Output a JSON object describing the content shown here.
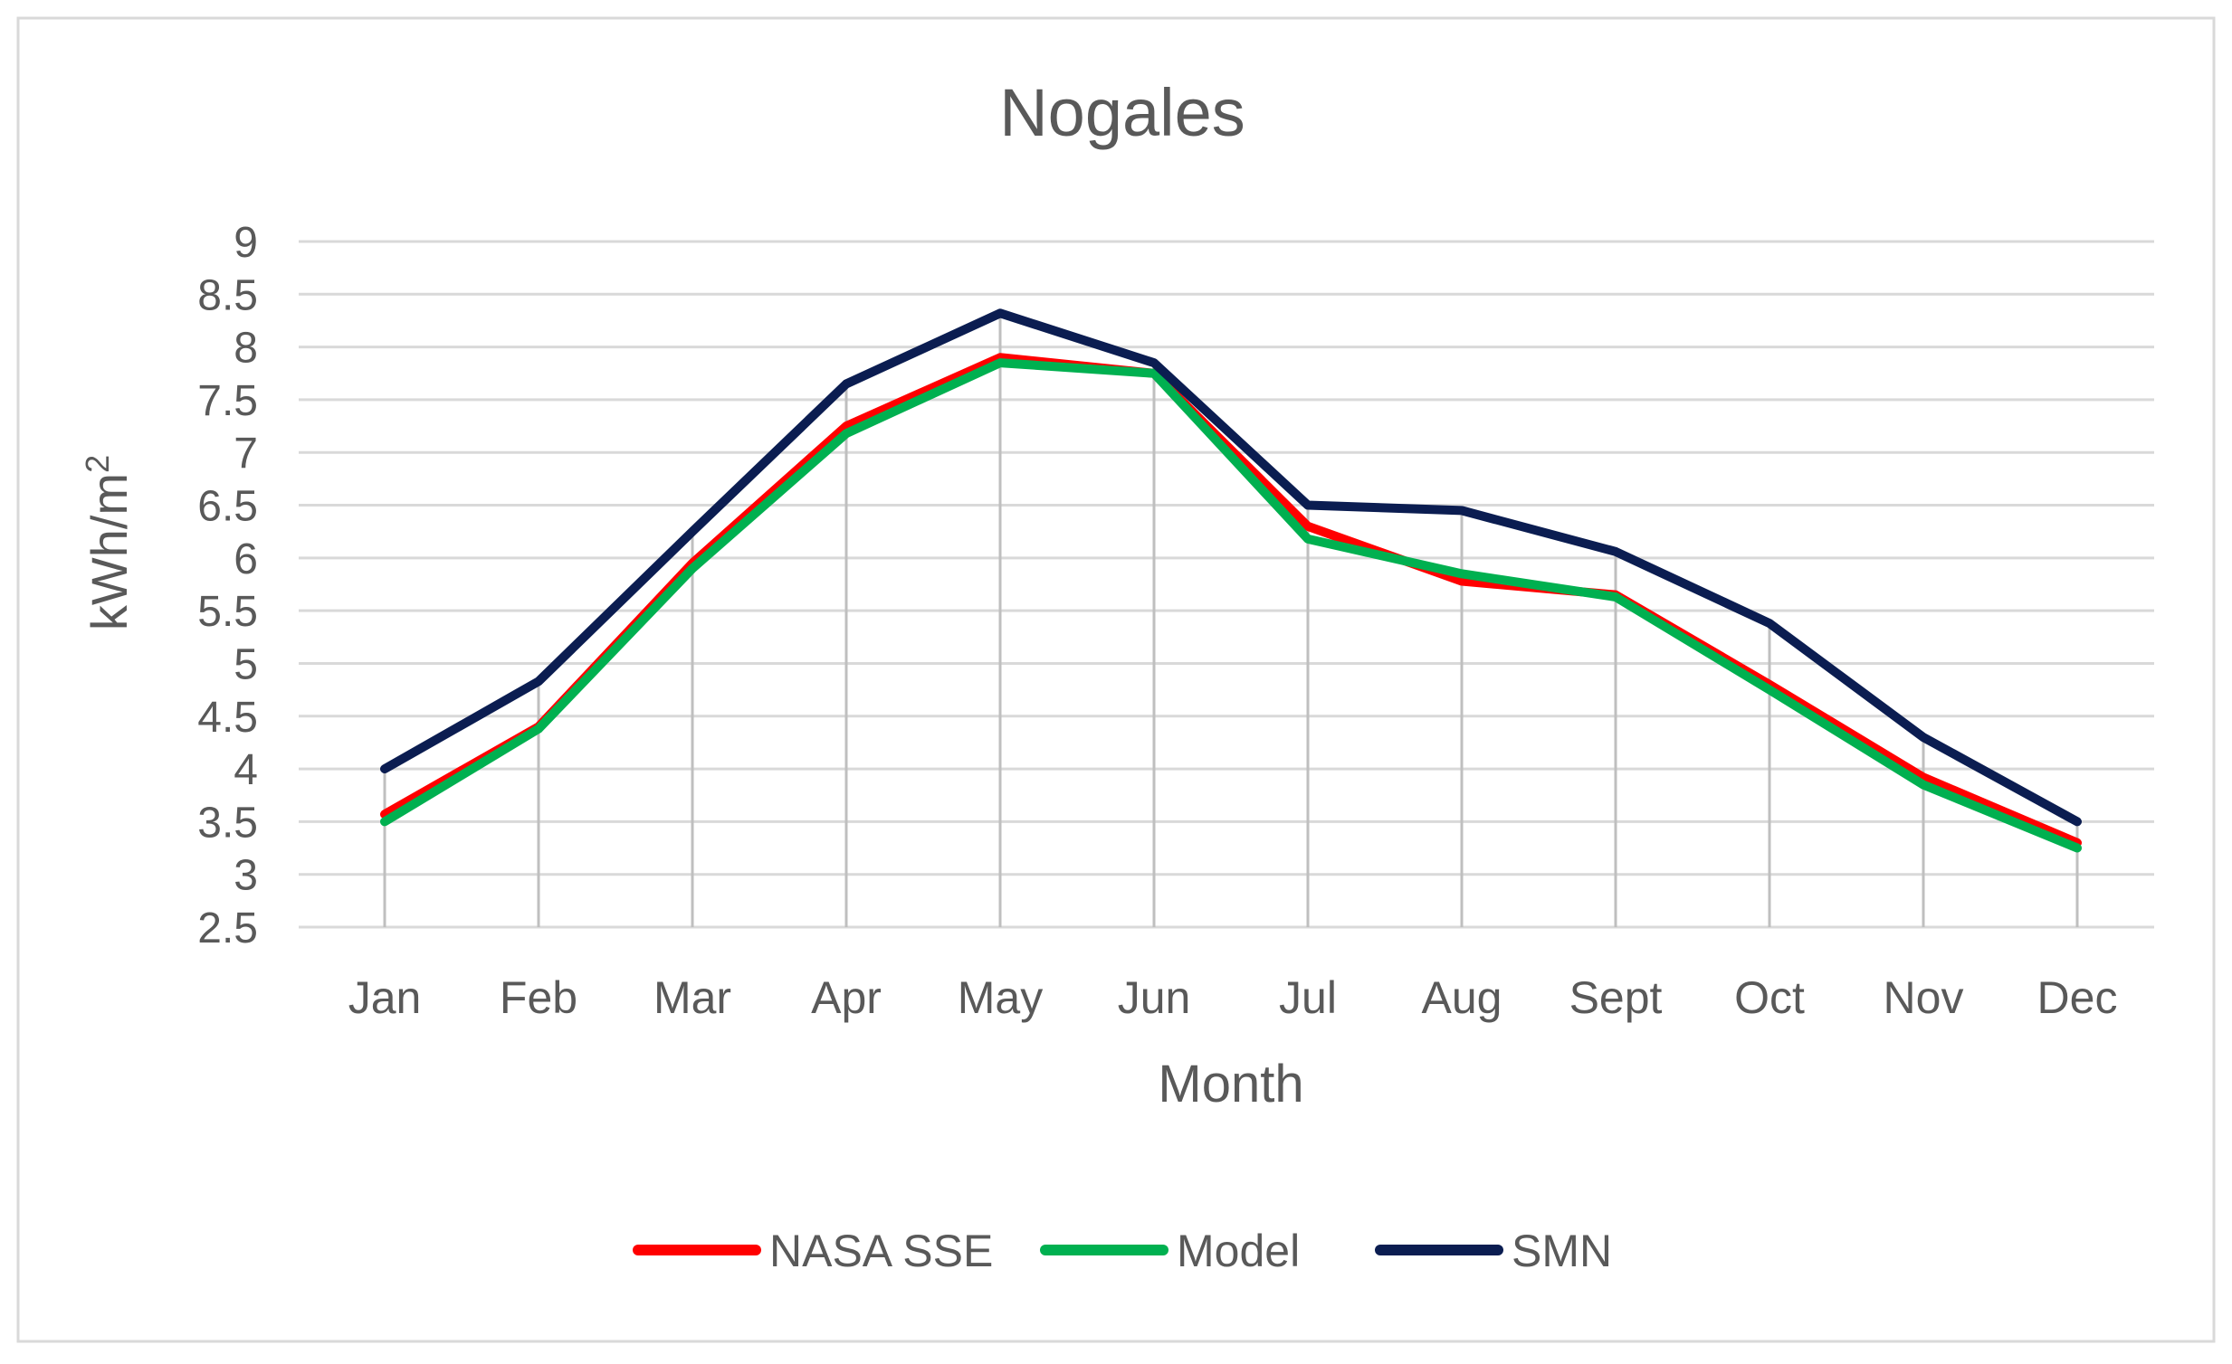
{
  "chart_data": {
    "type": "line",
    "title": "Nogales",
    "xlabel": "Month",
    "ylabel": "kWh/m",
    "ylabel_superscript": "2",
    "categories": [
      "Jan",
      "Feb",
      "Mar",
      "Apr",
      "May",
      "Jun",
      "Jul",
      "Aug",
      "Sept",
      "Oct",
      "Nov",
      "Dec"
    ],
    "ylim": [
      2.5,
      9
    ],
    "yticks": [
      "2.5",
      "3",
      "3.5",
      "4",
      "4.5",
      "5",
      "5.5",
      "6",
      "6.5",
      "7",
      "7.5",
      "8",
      "8.5",
      "9"
    ],
    "grid": true,
    "legend_position": "bottom",
    "series": [
      {
        "name": "NASA SSE",
        "color": "#ff0000",
        "values": [
          3.57,
          4.4,
          5.95,
          7.25,
          7.9,
          7.75,
          6.3,
          5.78,
          5.65,
          4.8,
          3.92,
          3.3
        ]
      },
      {
        "name": "Model",
        "color": "#00b050",
        "values": [
          3.5,
          4.38,
          5.9,
          7.18,
          7.85,
          7.75,
          6.18,
          5.85,
          5.63,
          4.75,
          3.85,
          3.25
        ]
      },
      {
        "name": "SMN",
        "color": "#0b1d51",
        "values": [
          4.0,
          4.83,
          6.25,
          7.65,
          8.32,
          7.85,
          6.5,
          6.45,
          6.06,
          5.38,
          4.3,
          3.5
        ]
      }
    ]
  }
}
